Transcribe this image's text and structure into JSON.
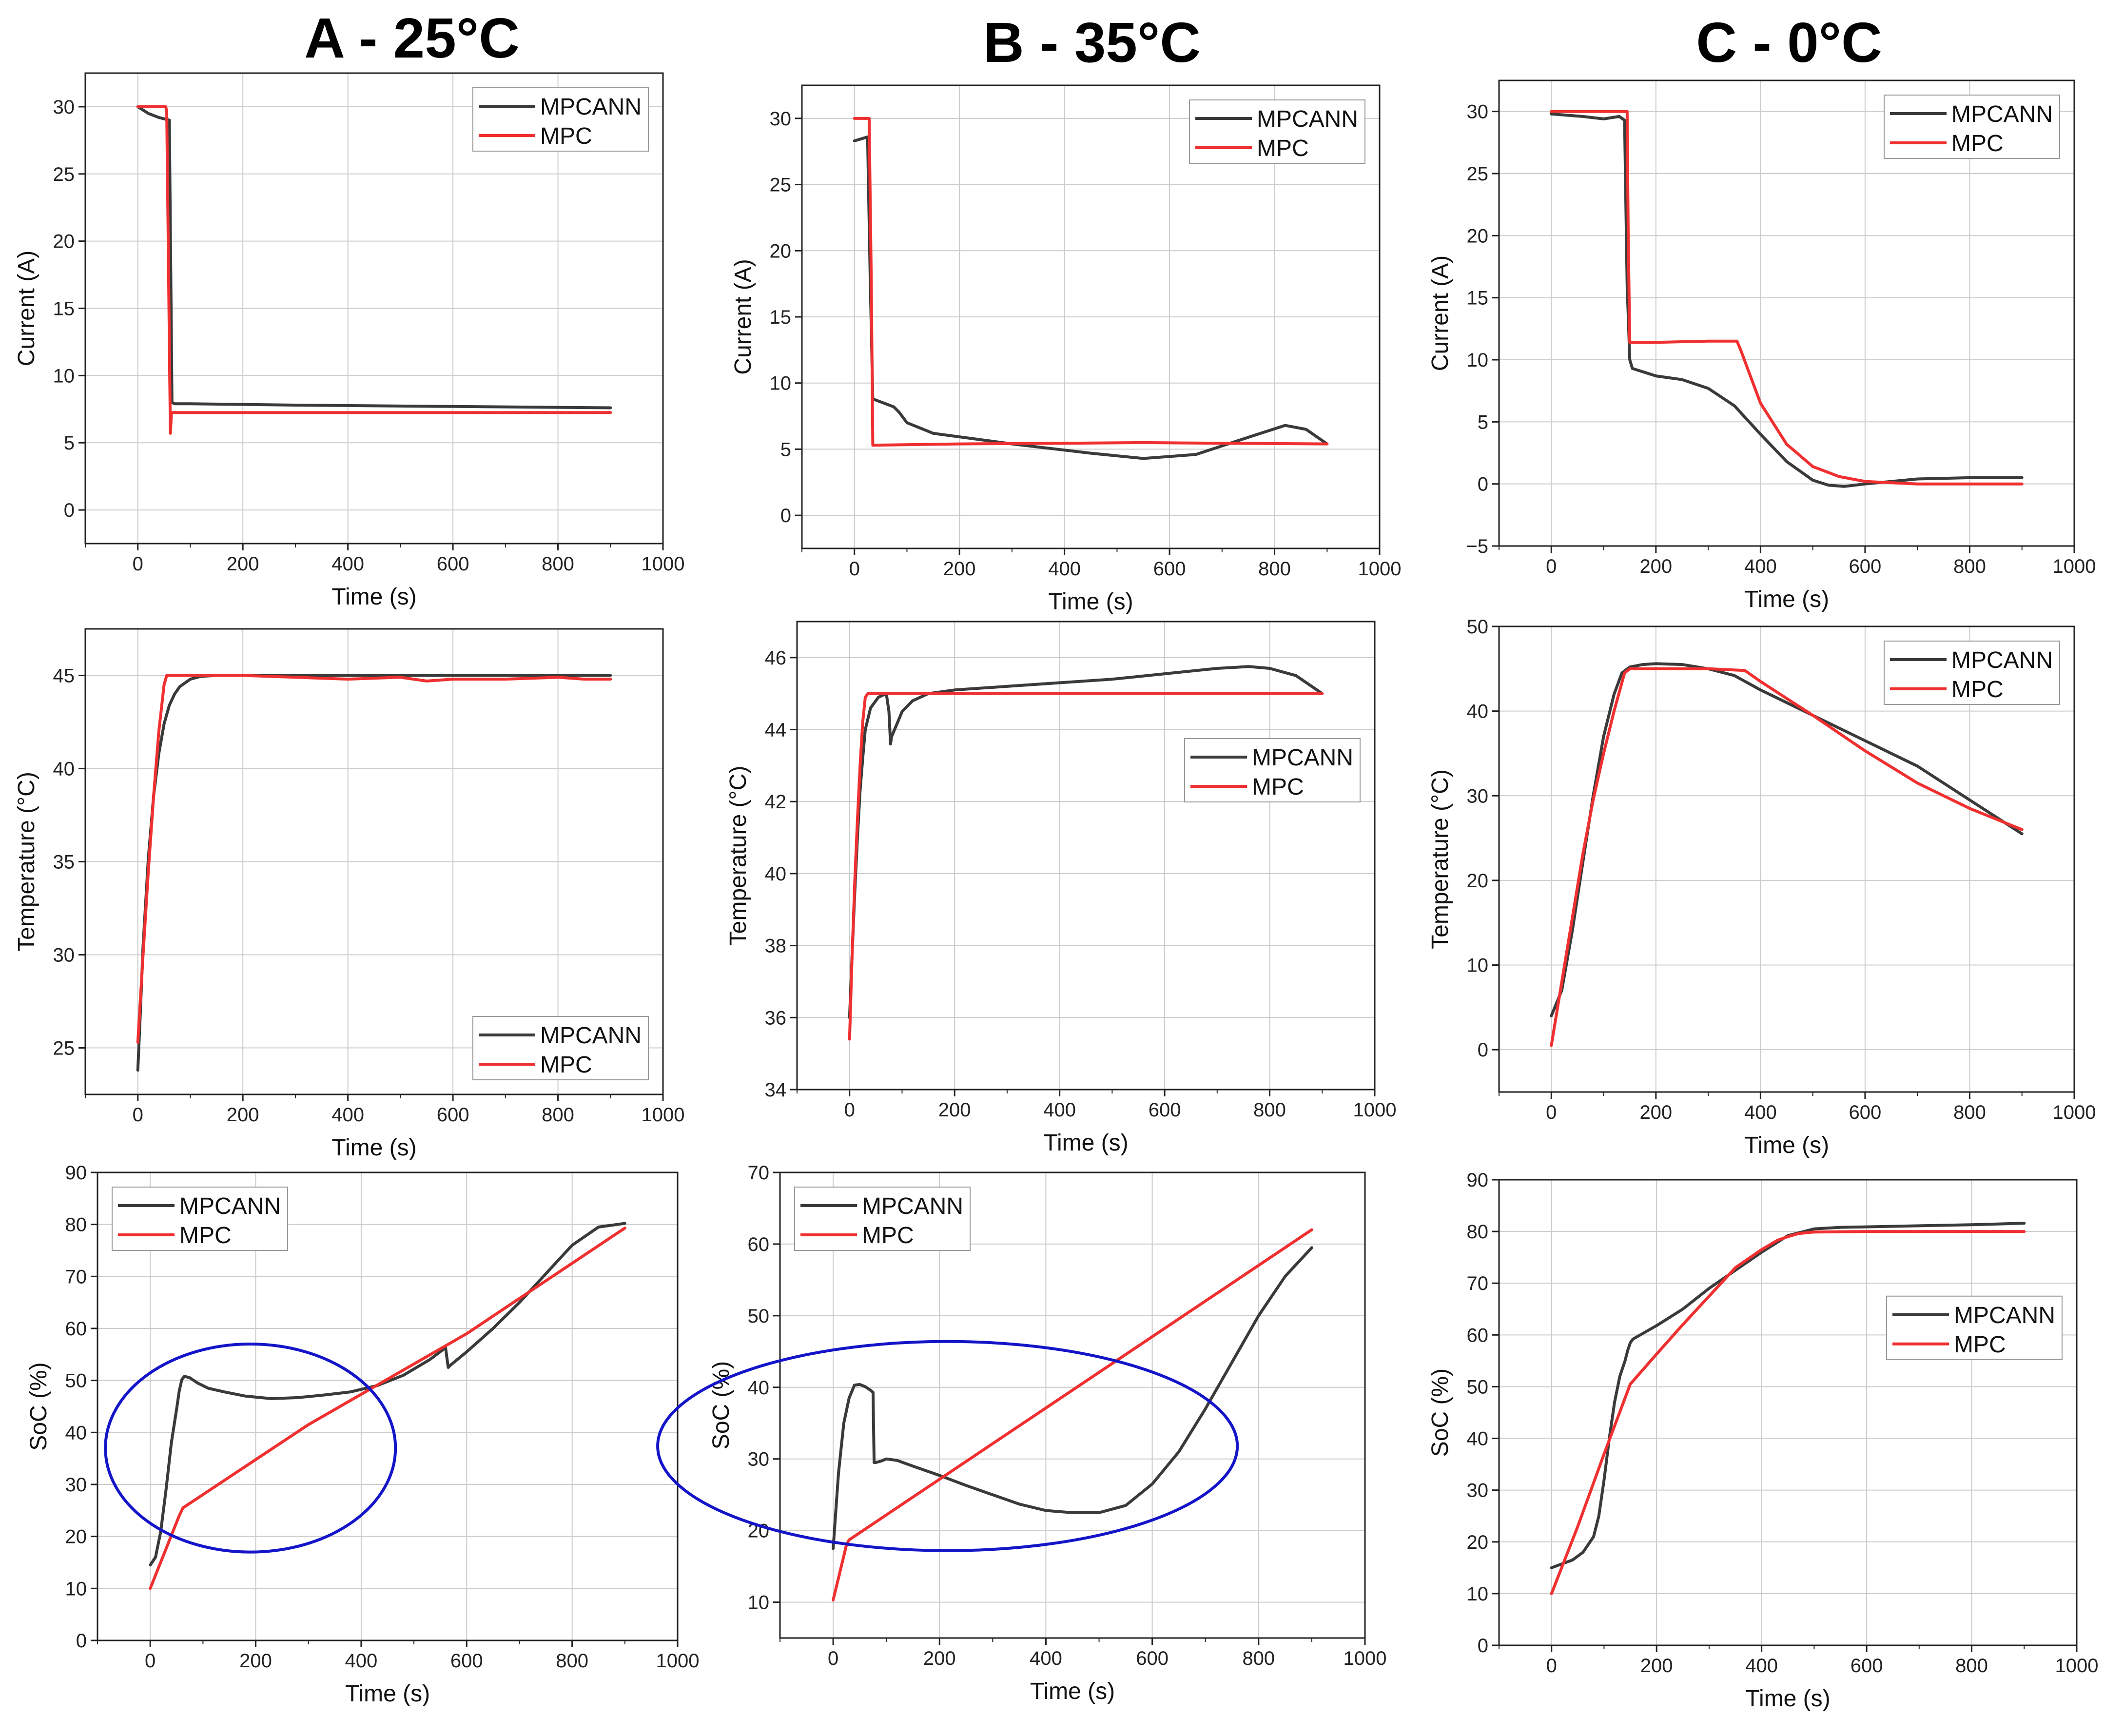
{
  "colors": {
    "mpcann": "#3a3a3a",
    "mpc": "#f03030",
    "highlight": "#1414c8",
    "grid": "#cccccc"
  },
  "columns": [
    "A - 25°C",
    "B - 35°C",
    "C - 0°C"
  ],
  "chart_data": [
    {
      "id": "A-current",
      "type": "line",
      "title": "A - 25°C",
      "xlabel": "Time (s)",
      "ylabel": "Current (A)",
      "xlim": [
        -100,
        1000
      ],
      "ylim": [
        -2.5,
        32.5
      ],
      "xticks": [
        0,
        200,
        400,
        600,
        800,
        1000
      ],
      "yticks": [
        0,
        5,
        10,
        15,
        20,
        25,
        30
      ],
      "legend": {
        "position": "top-right",
        "entries": [
          "MPCANN",
          "MPC"
        ]
      },
      "series": [
        {
          "name": "MPCANN",
          "x": [
            0,
            20,
            40,
            60,
            65,
            70,
            100,
            300,
            600,
            900
          ],
          "y": [
            30,
            29.5,
            29.2,
            29,
            8,
            7.9,
            7.9,
            7.8,
            7.7,
            7.6
          ]
        },
        {
          "name": "MPC",
          "x": [
            0,
            53,
            55,
            62,
            64,
            66,
            100,
            500,
            900
          ],
          "y": [
            30,
            30,
            29.7,
            5.7,
            7.2,
            7.25,
            7.25,
            7.25,
            7.25
          ]
        }
      ]
    },
    {
      "id": "B-current",
      "type": "line",
      "xlabel": "Time (s)",
      "ylabel": "Current (A)",
      "xlim": [
        -100,
        1000
      ],
      "ylim": [
        -2.5,
        32.5
      ],
      "xticks": [
        0,
        200,
        400,
        600,
        800,
        1000
      ],
      "yticks": [
        0,
        5,
        10,
        15,
        20,
        25,
        30
      ],
      "legend": {
        "position": "top-right",
        "entries": [
          "MPCANN",
          "MPC"
        ]
      },
      "series": [
        {
          "name": "MPCANN",
          "x": [
            0,
            25,
            30,
            35,
            55,
            75,
            85,
            100,
            150,
            300,
            450,
            550,
            650,
            750,
            820,
            860,
            900
          ],
          "y": [
            28.3,
            28.6,
            18,
            8.8,
            8.5,
            8.2,
            7.8,
            7.0,
            6.2,
            5.4,
            4.7,
            4.3,
            4.6,
            5.9,
            6.8,
            6.5,
            5.4
          ]
        },
        {
          "name": "MPC",
          "x": [
            0,
            28,
            32,
            35,
            200,
            400,
            550,
            700,
            900
          ],
          "y": [
            30,
            30,
            18,
            5.3,
            5.4,
            5.45,
            5.5,
            5.45,
            5.4
          ]
        }
      ]
    },
    {
      "id": "C-current",
      "type": "line",
      "xlabel": "Time (s)",
      "ylabel": "Current (A)",
      "xlim": [
        -100,
        1000
      ],
      "ylim": [
        -5,
        32.5
      ],
      "xticks": [
        0,
        200,
        400,
        600,
        800,
        1000
      ],
      "yticks": [
        -5,
        0,
        5,
        10,
        15,
        20,
        25,
        30
      ],
      "legend": {
        "position": "top-right",
        "entries": [
          "MPCANN",
          "MPC"
        ]
      },
      "series": [
        {
          "name": "MPCANN",
          "x": [
            0,
            60,
            100,
            130,
            140,
            145,
            150,
            155,
            200,
            250,
            300,
            350,
            400,
            450,
            500,
            530,
            560,
            600,
            650,
            700,
            800,
            900
          ],
          "y": [
            29.8,
            29.6,
            29.4,
            29.6,
            29.3,
            16,
            10,
            9.3,
            8.7,
            8.4,
            7.7,
            6.3,
            4.0,
            1.8,
            0.3,
            -0.1,
            -0.2,
            0.0,
            0.2,
            0.4,
            0.5,
            0.5
          ]
        },
        {
          "name": "MPC",
          "x": [
            0,
            145,
            147,
            150,
            200,
            300,
            355,
            362,
            400,
            450,
            500,
            550,
            600,
            700,
            800,
            900
          ],
          "y": [
            30,
            30,
            20,
            11.4,
            11.4,
            11.5,
            11.5,
            10.8,
            6.5,
            3.2,
            1.4,
            0.6,
            0.2,
            0.0,
            0.0,
            0.0
          ]
        }
      ]
    },
    {
      "id": "A-temperature",
      "type": "line",
      "xlabel": "Time (s)",
      "ylabel": "Temperature (°C)",
      "xlim": [
        -100,
        1000
      ],
      "ylim": [
        22.5,
        47.5
      ],
      "xticks": [
        0,
        200,
        400,
        600,
        800,
        1000
      ],
      "yticks": [
        25,
        30,
        35,
        40,
        45
      ],
      "legend": {
        "position": "bottom-right",
        "entries": [
          "MPCANN",
          "MPC"
        ]
      },
      "series": [
        {
          "name": "MPCANN",
          "x": [
            0,
            5,
            10,
            20,
            30,
            40,
            50,
            60,
            70,
            80,
            100,
            120,
            150,
            200,
            400,
            600,
            900
          ],
          "y": [
            23.8,
            27,
            30.5,
            35.2,
            38.5,
            40.8,
            42.4,
            43.4,
            44.0,
            44.4,
            44.8,
            44.95,
            45,
            45,
            45,
            45,
            45
          ]
        },
        {
          "name": "MPC",
          "x": [
            0,
            10,
            20,
            30,
            40,
            50,
            55,
            60,
            200,
            300,
            400,
            500,
            550,
            600,
            700,
            800,
            850,
            900
          ],
          "y": [
            25.3,
            30,
            34.5,
            38.5,
            42,
            44.5,
            45,
            45,
            45,
            44.9,
            44.8,
            44.9,
            44.7,
            44.8,
            44.8,
            44.9,
            44.8,
            44.8
          ]
        }
      ]
    },
    {
      "id": "B-temperature",
      "type": "line",
      "xlabel": "Time (s)",
      "ylabel": "Temperature (°C)",
      "xlim": [
        -100,
        1000
      ],
      "ylim": [
        34,
        47
      ],
      "xticks": [
        0,
        200,
        400,
        600,
        800,
        1000
      ],
      "yticks": [
        34,
        36,
        38,
        40,
        42,
        44,
        46
      ],
      "legend": {
        "position": "middle-right",
        "entries": [
          "MPCANN",
          "MPC"
        ]
      },
      "series": [
        {
          "name": "MPCANN",
          "x": [
            0,
            5,
            10,
            15,
            20,
            25,
            30,
            40,
            55,
            70,
            75,
            78,
            80,
            100,
            120,
            150,
            200,
            300,
            400,
            500,
            600,
            700,
            760,
            800,
            850,
            880,
            900
          ],
          "y": [
            36,
            37.8,
            39.5,
            41,
            42.3,
            43.2,
            44.0,
            44.6,
            44.9,
            45.0,
            44.5,
            43.6,
            43.8,
            44.5,
            44.8,
            45.0,
            45.1,
            45.2,
            45.3,
            45.4,
            45.55,
            45.7,
            45.75,
            45.7,
            45.5,
            45.2,
            45.0
          ]
        },
        {
          "name": "MPC",
          "x": [
            0,
            5,
            10,
            15,
            20,
            25,
            30,
            35,
            100,
            500,
            900
          ],
          "y": [
            35.4,
            37.8,
            39.8,
            41.5,
            43,
            44.2,
            44.9,
            45,
            45,
            45,
            45
          ]
        }
      ]
    },
    {
      "id": "C-temperature",
      "type": "line",
      "xlabel": "Time (s)",
      "ylabel": "Temperature (°C)",
      "xlim": [
        -100,
        1000
      ],
      "ylim": [
        -5,
        50
      ],
      "xticks": [
        0,
        200,
        400,
        600,
        800,
        1000
      ],
      "yticks": [
        0,
        10,
        20,
        30,
        40,
        50
      ],
      "legend": {
        "position": "top-right",
        "entries": [
          "MPCANN",
          "MPC"
        ]
      },
      "series": [
        {
          "name": "MPCANN",
          "x": [
            0,
            20,
            40,
            60,
            80,
            100,
            120,
            135,
            150,
            175,
            200,
            250,
            300,
            350,
            400,
            500,
            600,
            700,
            800,
            850,
            900
          ],
          "y": [
            4,
            7,
            14,
            22,
            30,
            37,
            42,
            44.5,
            45.2,
            45.5,
            45.6,
            45.5,
            45,
            44.2,
            42.5,
            39.5,
            36.5,
            33.5,
            29.5,
            27.5,
            25.5
          ]
        },
        {
          "name": "MPC",
          "x": [
            0,
            20,
            40,
            60,
            80,
            100,
            120,
            140,
            150,
            200,
            300,
            370,
            400,
            500,
            600,
            700,
            800,
            900
          ],
          "y": [
            0.5,
            8,
            15.5,
            23,
            29.5,
            35,
            40,
            44.5,
            45,
            45,
            45,
            44.8,
            43.5,
            39.5,
            35.3,
            31.5,
            28.5,
            26
          ]
        }
      ]
    },
    {
      "id": "A-soc",
      "type": "line",
      "xlabel": "Time (s)",
      "ylabel": "SoC (%)",
      "xlim": [
        -100,
        1000
      ],
      "ylim": [
        0,
        90
      ],
      "xticks": [
        0,
        200,
        400,
        600,
        800,
        1000
      ],
      "yticks": [
        0,
        10,
        20,
        30,
        40,
        50,
        60,
        70,
        80,
        90
      ],
      "legend": {
        "position": "top-left",
        "entries": [
          "MPCANN",
          "MPC"
        ]
      },
      "annotations": [
        {
          "shape": "ellipse",
          "cx": 190,
          "cy": 37,
          "rx": 275,
          "ry": 20
        }
      ],
      "series": [
        {
          "name": "MPCANN",
          "x": [
            0,
            10,
            20,
            30,
            40,
            50,
            55,
            60,
            65,
            75,
            90,
            110,
            140,
            180,
            230,
            280,
            330,
            380,
            430,
            480,
            530,
            560,
            565,
            570,
            600,
            650,
            700,
            750,
            800,
            850,
            900
          ],
          "y": [
            14.5,
            16,
            21,
            29,
            38,
            44.5,
            48,
            50.2,
            50.8,
            50.5,
            49.5,
            48.5,
            47.8,
            47.0,
            46.5,
            46.7,
            47.2,
            47.8,
            49,
            51,
            54,
            56.3,
            52.5,
            53,
            55.5,
            60,
            65,
            70.5,
            76,
            79.5,
            80.2
          ]
        },
        {
          "name": "MPC",
          "x": [
            0,
            55,
            62,
            300,
            600,
            900
          ],
          "y": [
            10,
            24,
            25.5,
            41.5,
            59,
            79.3
          ]
        }
      ]
    },
    {
      "id": "B-soc",
      "type": "line",
      "xlabel": "Time (s)",
      "ylabel": "SoC (%)",
      "xlim": [
        -100,
        1000
      ],
      "ylim": [
        5,
        70
      ],
      "xticks": [
        0,
        200,
        400,
        600,
        800,
        1000
      ],
      "yticks": [
        10,
        20,
        30,
        40,
        50,
        60,
        70
      ],
      "legend": {
        "position": "top-left",
        "entries": [
          "MPCANN",
          "MPC"
        ]
      },
      "annotations": [
        {
          "shape": "ellipse",
          "cx": 215,
          "cy": 31.8,
          "rx": 545,
          "ry": 14.6
        }
      ],
      "series": [
        {
          "name": "MPCANN",
          "x": [
            0,
            10,
            20,
            30,
            40,
            50,
            60,
            70,
            75,
            77,
            80,
            90,
            100,
            120,
            150,
            200,
            250,
            300,
            350,
            400,
            450,
            500,
            550,
            600,
            650,
            700,
            750,
            800,
            850,
            900
          ],
          "y": [
            17.5,
            28,
            35,
            38.5,
            40.3,
            40.4,
            40.1,
            39.6,
            39.3,
            29.5,
            29.5,
            29.7,
            30,
            29.8,
            29.0,
            27.7,
            26.3,
            25.0,
            23.7,
            22.8,
            22.5,
            22.5,
            23.5,
            26.5,
            31,
            37,
            43.5,
            50,
            55.5,
            59.5
          ]
        },
        {
          "name": "MPC",
          "x": [
            0,
            25,
            30,
            900
          ],
          "y": [
            10.3,
            18,
            18.7,
            62
          ]
        }
      ]
    },
    {
      "id": "C-soc",
      "type": "line",
      "xlabel": "Time (s)",
      "ylabel": "SoC (%)",
      "xlim": [
        -100,
        1000
      ],
      "ylim": [
        0,
        90
      ],
      "xticks": [
        0,
        200,
        400,
        600,
        800,
        1000
      ],
      "yticks": [
        0,
        10,
        20,
        30,
        40,
        50,
        60,
        70,
        80,
        90
      ],
      "legend": {
        "position": "middle-right",
        "entries": [
          "MPCANN",
          "MPC"
        ]
      },
      "series": [
        {
          "name": "MPCANN",
          "x": [
            0,
            40,
            60,
            80,
            90,
            100,
            110,
            120,
            130,
            140,
            145,
            150,
            155,
            200,
            250,
            300,
            350,
            400,
            450,
            500,
            550,
            600,
            700,
            800,
            900
          ],
          "y": [
            15,
            16.5,
            18,
            21,
            25,
            32,
            40,
            47,
            52,
            55,
            57,
            58.5,
            59.2,
            61.8,
            65,
            69,
            72.5,
            76,
            79.2,
            80.5,
            80.8,
            80.9,
            81.1,
            81.3,
            81.6
          ]
        },
        {
          "name": "MPC",
          "x": [
            0,
            50,
            100,
            150,
            200,
            250,
            300,
            350,
            400,
            430,
            450,
            470,
            500,
            600,
            700,
            900
          ],
          "y": [
            10,
            23,
            37,
            50.5,
            56.3,
            62,
            67.5,
            73,
            76.5,
            78.3,
            79.0,
            79.6,
            79.9,
            80,
            80,
            80
          ]
        }
      ]
    }
  ]
}
